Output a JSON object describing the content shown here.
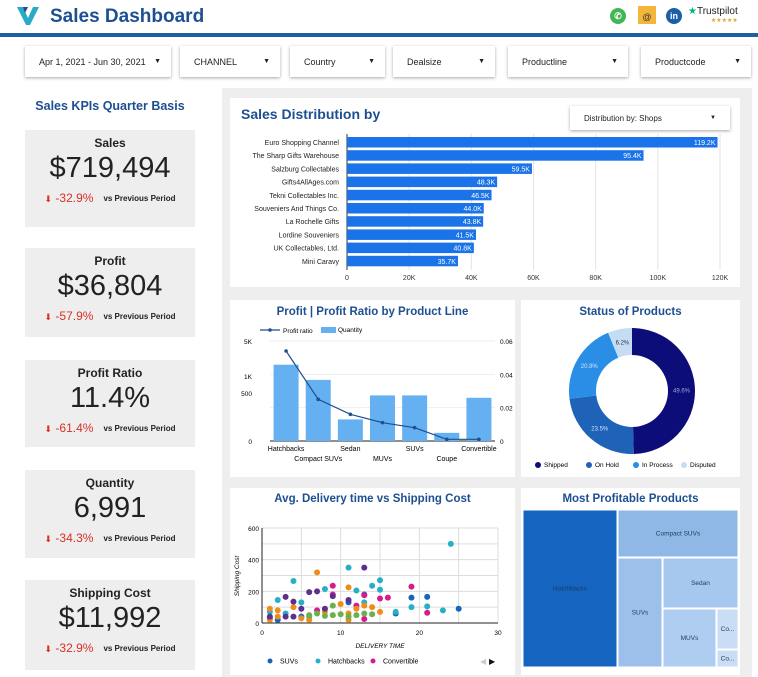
{
  "header": {
    "title": "Sales Dashboard",
    "icons": [
      "whatsapp-icon",
      "email-icon",
      "linkedin-icon",
      "trustpilot-icon"
    ],
    "trustpilot": "Trustpilot",
    "stars": "★★★★★"
  },
  "filters": [
    {
      "label": "Apr 1, 2021 - Jun 30, 2021"
    },
    {
      "label": "CHANNEL"
    },
    {
      "label": "Country"
    },
    {
      "label": "Dealsize"
    },
    {
      "label": "Productline"
    },
    {
      "label": "Productcode"
    }
  ],
  "kpis": {
    "title": "Sales KPIs Quarter Basis",
    "items": [
      {
        "label": "Sales",
        "value": "$719,494",
        "delta": "-32.9%",
        "note": "vs Previous Period"
      },
      {
        "label": "Profit",
        "value": "$36,804",
        "delta": "-57.9%",
        "note": "vs Previous Period"
      },
      {
        "label": "Profit Ratio",
        "value": "11.4%",
        "delta": "-61.4%",
        "note": "vs Previous Period"
      },
      {
        "label": "Quantity",
        "value": "6,991",
        "delta": "-34.3%",
        "note": "vs Previous Period"
      },
      {
        "label": "Shipping Cost",
        "value": "$11,992",
        "delta": "-32.9%",
        "note": "vs Previous Period"
      }
    ]
  },
  "colors": {
    "brand": "#1d4f91",
    "bar": "#1a73e8",
    "lightbar": "#64b0f0",
    "negative": "#d93025"
  },
  "chart_data": [
    {
      "type": "bar",
      "orientation": "horizontal",
      "title": "Sales Distribution by",
      "dropdown_label": "Distribution by",
      "dropdown_value": "Shops",
      "categories": [
        "Euro Shopping Channel",
        "The Sharp Gifts Warehouse",
        "Salzburg Collectables",
        "Gifts4AllAges.com",
        "Tekni Collectables Inc.",
        "Souveniers And Things Co.",
        "La Rochelle Gifts",
        "Lordine Souveniers",
        "UK Collectables, Ltd.",
        "Mini Caravy"
      ],
      "values": [
        119200,
        95400,
        59500,
        48300,
        46500,
        44000,
        43800,
        41500,
        40800,
        35700
      ],
      "labels": [
        "119.2K",
        "95.4K",
        "59.5K",
        "48.3K",
        "46.5K",
        "44.0K",
        "43.8K",
        "41.5K",
        "40.8K",
        "35.7K"
      ],
      "xlim": [
        0,
        120000
      ],
      "xticks": [
        "0",
        "20K",
        "40K",
        "60K",
        "80K",
        "100K",
        "120K"
      ],
      "grid": true
    },
    {
      "type": "bar+line",
      "title": "Profit | Profit Ratio by Product Line",
      "categories": [
        "Hatchbacks",
        "Compact SUVs",
        "Sedan",
        "MUVs",
        "SUVs",
        "Coupe",
        "Convertible"
      ],
      "series": [
        {
          "name": "Quantity",
          "type": "bar",
          "values": [
            2400,
            1500,
            450,
            950,
            950,
            170,
            900
          ]
        },
        {
          "name": "Profit ratio",
          "type": "line",
          "values": [
            0.054,
            0.025,
            0.016,
            0.011,
            0.008,
            0.001,
            0.001
          ]
        }
      ],
      "yticks_left": [
        "0",
        "500",
        "1K",
        "5K"
      ],
      "yticks_right": [
        "0",
        "0.02",
        "0.04",
        "0.06"
      ],
      "legend": "top-left"
    },
    {
      "type": "pie",
      "donut": true,
      "title": "Status of Products",
      "categories": [
        "Shipped",
        "On Hold",
        "In Process",
        "Disputed"
      ],
      "values": [
        49.6,
        23.5,
        20.8,
        6.2
      ],
      "labels": [
        "49.6%",
        "23.5%",
        "20.8%",
        "6.2%"
      ],
      "colors": [
        "#0d0d7a",
        "#1e63b8",
        "#2b8ee6",
        "#c4ddf5"
      ],
      "legend": "bottom"
    },
    {
      "type": "scatter",
      "title": "Avg. Delivery time vs Shipping Cost",
      "xlabel": "DELIVERY TIME",
      "ylabel": "Shipping Cost",
      "xlim": [
        0,
        30
      ],
      "ylim": [
        0,
        600
      ],
      "xticks": [
        "0",
        "10",
        "20",
        "30"
      ],
      "yticks": [
        "0",
        "200",
        "400",
        "600"
      ],
      "legend": "bottom",
      "grid": true,
      "series": [
        {
          "name": "SUVs",
          "color": "#1565c0",
          "points": [
            [
              1,
              30
            ],
            [
              2,
              20
            ],
            [
              5,
              40
            ],
            [
              11,
              130
            ],
            [
              13,
              180
            ],
            [
              17,
              60
            ],
            [
              19,
              160
            ],
            [
              21,
              165
            ],
            [
              25,
              90
            ]
          ]
        },
        {
          "name": "Hatchbacks",
          "color": "#26b0c8",
          "points": [
            [
              1,
              70
            ],
            [
              2,
              145
            ],
            [
              3,
              60
            ],
            [
              4,
              265
            ],
            [
              5,
              130
            ],
            [
              6,
              40
            ],
            [
              8,
              215
            ],
            [
              11,
              350
            ],
            [
              12,
              205
            ],
            [
              13,
              130
            ],
            [
              14,
              235
            ],
            [
              15,
              270
            ],
            [
              15,
              210
            ],
            [
              17,
              70
            ],
            [
              19,
              100
            ],
            [
              21,
              105
            ],
            [
              23,
              80
            ],
            [
              24,
              500
            ]
          ]
        },
        {
          "name": "Convertible",
          "color": "#d81b8c",
          "points": [
            [
              7,
              80
            ],
            [
              9,
              235
            ],
            [
              9,
              180
            ],
            [
              12,
              110
            ],
            [
              13,
              175
            ],
            [
              13,
              25
            ],
            [
              15,
              155
            ],
            [
              16,
              160
            ],
            [
              19,
              230
            ],
            [
              21,
              65
            ]
          ]
        },
        {
          "color": "#ef8c1a",
          "points": [
            [
              1,
              90
            ],
            [
              1,
              20
            ],
            [
              2,
              80
            ],
            [
              2,
              40
            ],
            [
              4,
              100
            ],
            [
              5,
              30
            ],
            [
              6,
              20
            ],
            [
              7,
              320
            ],
            [
              8,
              70
            ],
            [
              10,
              120
            ],
            [
              11,
              225
            ],
            [
              11,
              60
            ],
            [
              11,
              20
            ],
            [
              12,
              90
            ],
            [
              13,
              110
            ],
            [
              14,
              100
            ],
            [
              15,
              70
            ]
          ]
        },
        {
          "color": "#5e2d91",
          "points": [
            [
              1,
              40
            ],
            [
              3,
              165
            ],
            [
              3,
              40
            ],
            [
              4,
              135
            ],
            [
              4,
              40
            ],
            [
              5,
              90
            ],
            [
              6,
              195
            ],
            [
              7,
              200
            ],
            [
              8,
              90
            ],
            [
              9,
              170
            ],
            [
              11,
              145
            ],
            [
              13,
              350
            ]
          ]
        },
        {
          "color": "#6ab04c",
          "points": [
            [
              6,
              50
            ],
            [
              7,
              60
            ],
            [
              8,
              45
            ],
            [
              9,
              50
            ],
            [
              9,
              110
            ],
            [
              10,
              55
            ],
            [
              11,
              40
            ],
            [
              12,
              50
            ],
            [
              13,
              60
            ],
            [
              14,
              55
            ]
          ]
        }
      ]
    },
    {
      "type": "treemap",
      "title": "Most Profitable Products",
      "categories": [
        "Hatchbacks",
        "Compact SUVs",
        "SUVs",
        "Sedan",
        "MUVs",
        "Co...",
        "Co..."
      ]
    }
  ]
}
